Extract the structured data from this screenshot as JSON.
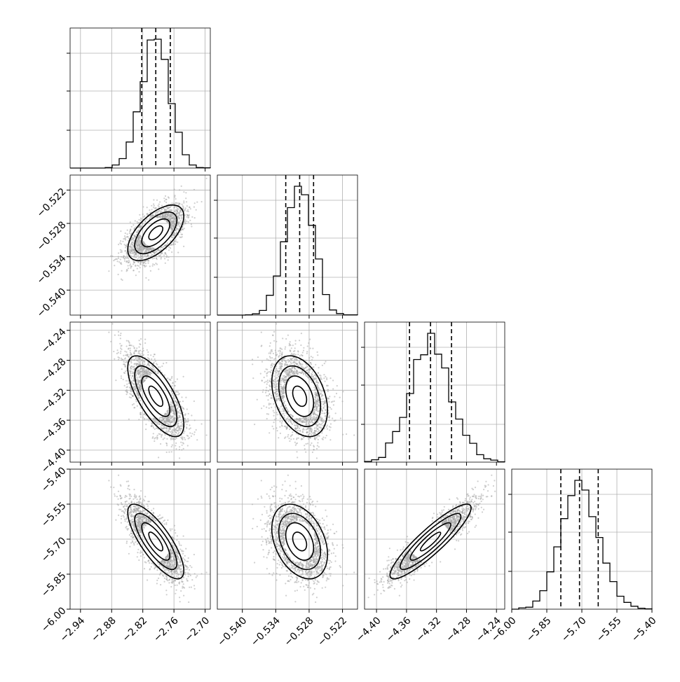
{
  "chart_data": {
    "type": "corner",
    "params": [
      {
        "range": [
          -2.96,
          -2.69
        ],
        "ticks": [
          -2.94,
          -2.88,
          -2.82,
          -2.76,
          -2.7
        ],
        "tick_labels": [
          "−2.94",
          "−2.88",
          "−2.82",
          "−2.76",
          "−2.70"
        ],
        "median": -2.795,
        "quantiles": [
          -2.822,
          -2.795,
          -2.767
        ],
        "sigma": 0.027
      },
      {
        "range": [
          -0.5445,
          -0.5193
        ],
        "ticks": [
          -0.54,
          -0.534,
          -0.528,
          -0.522
        ],
        "tick_labels": [
          "−0.540",
          "−0.534",
          "−0.528",
          "−0.522"
        ],
        "median": -0.5297,
        "quantiles": [
          -0.5322,
          -0.5297,
          -0.5272
        ],
        "sigma": 0.0025
      },
      {
        "range": [
          -4.416,
          -4.229
        ],
        "ticks": [
          -4.4,
          -4.36,
          -4.32,
          -4.28,
          -4.24
        ],
        "tick_labels": [
          "−4.40",
          "−4.36",
          "−4.32",
          "−4.28",
          "−4.24"
        ],
        "median": -4.328,
        "quantiles": [
          -4.356,
          -4.328,
          -4.3
        ],
        "sigma": 0.027
      },
      {
        "range": [
          -6.0,
          -5.4
        ],
        "ticks": [
          -6.0,
          -5.85,
          -5.7,
          -5.55,
          -5.4
        ],
        "tick_labels": [
          "−6.00",
          "−5.85",
          "−5.70",
          "−5.55",
          "−5.40"
        ],
        "median": -5.71,
        "quantiles": [
          -5.79,
          -5.71,
          -5.63
        ],
        "sigma": 0.08
      }
    ],
    "correlations": [
      [
        1,
        0.6,
        -0.7,
        -0.78
      ],
      [
        0.6,
        1,
        -0.35,
        -0.35
      ],
      [
        -0.7,
        -0.35,
        1,
        0.9
      ],
      [
        -0.78,
        -0.35,
        0.9,
        1
      ]
    ],
    "contour_levels": [
      0.5,
      1.0,
      1.5,
      2.0
    ],
    "histogram_bins": 20,
    "grid": true,
    "colors": {
      "contour": "#000000",
      "hist": "#000000",
      "points": "#a8a8a8",
      "density_dark": "#000000",
      "density_light": "#ffffff"
    }
  }
}
